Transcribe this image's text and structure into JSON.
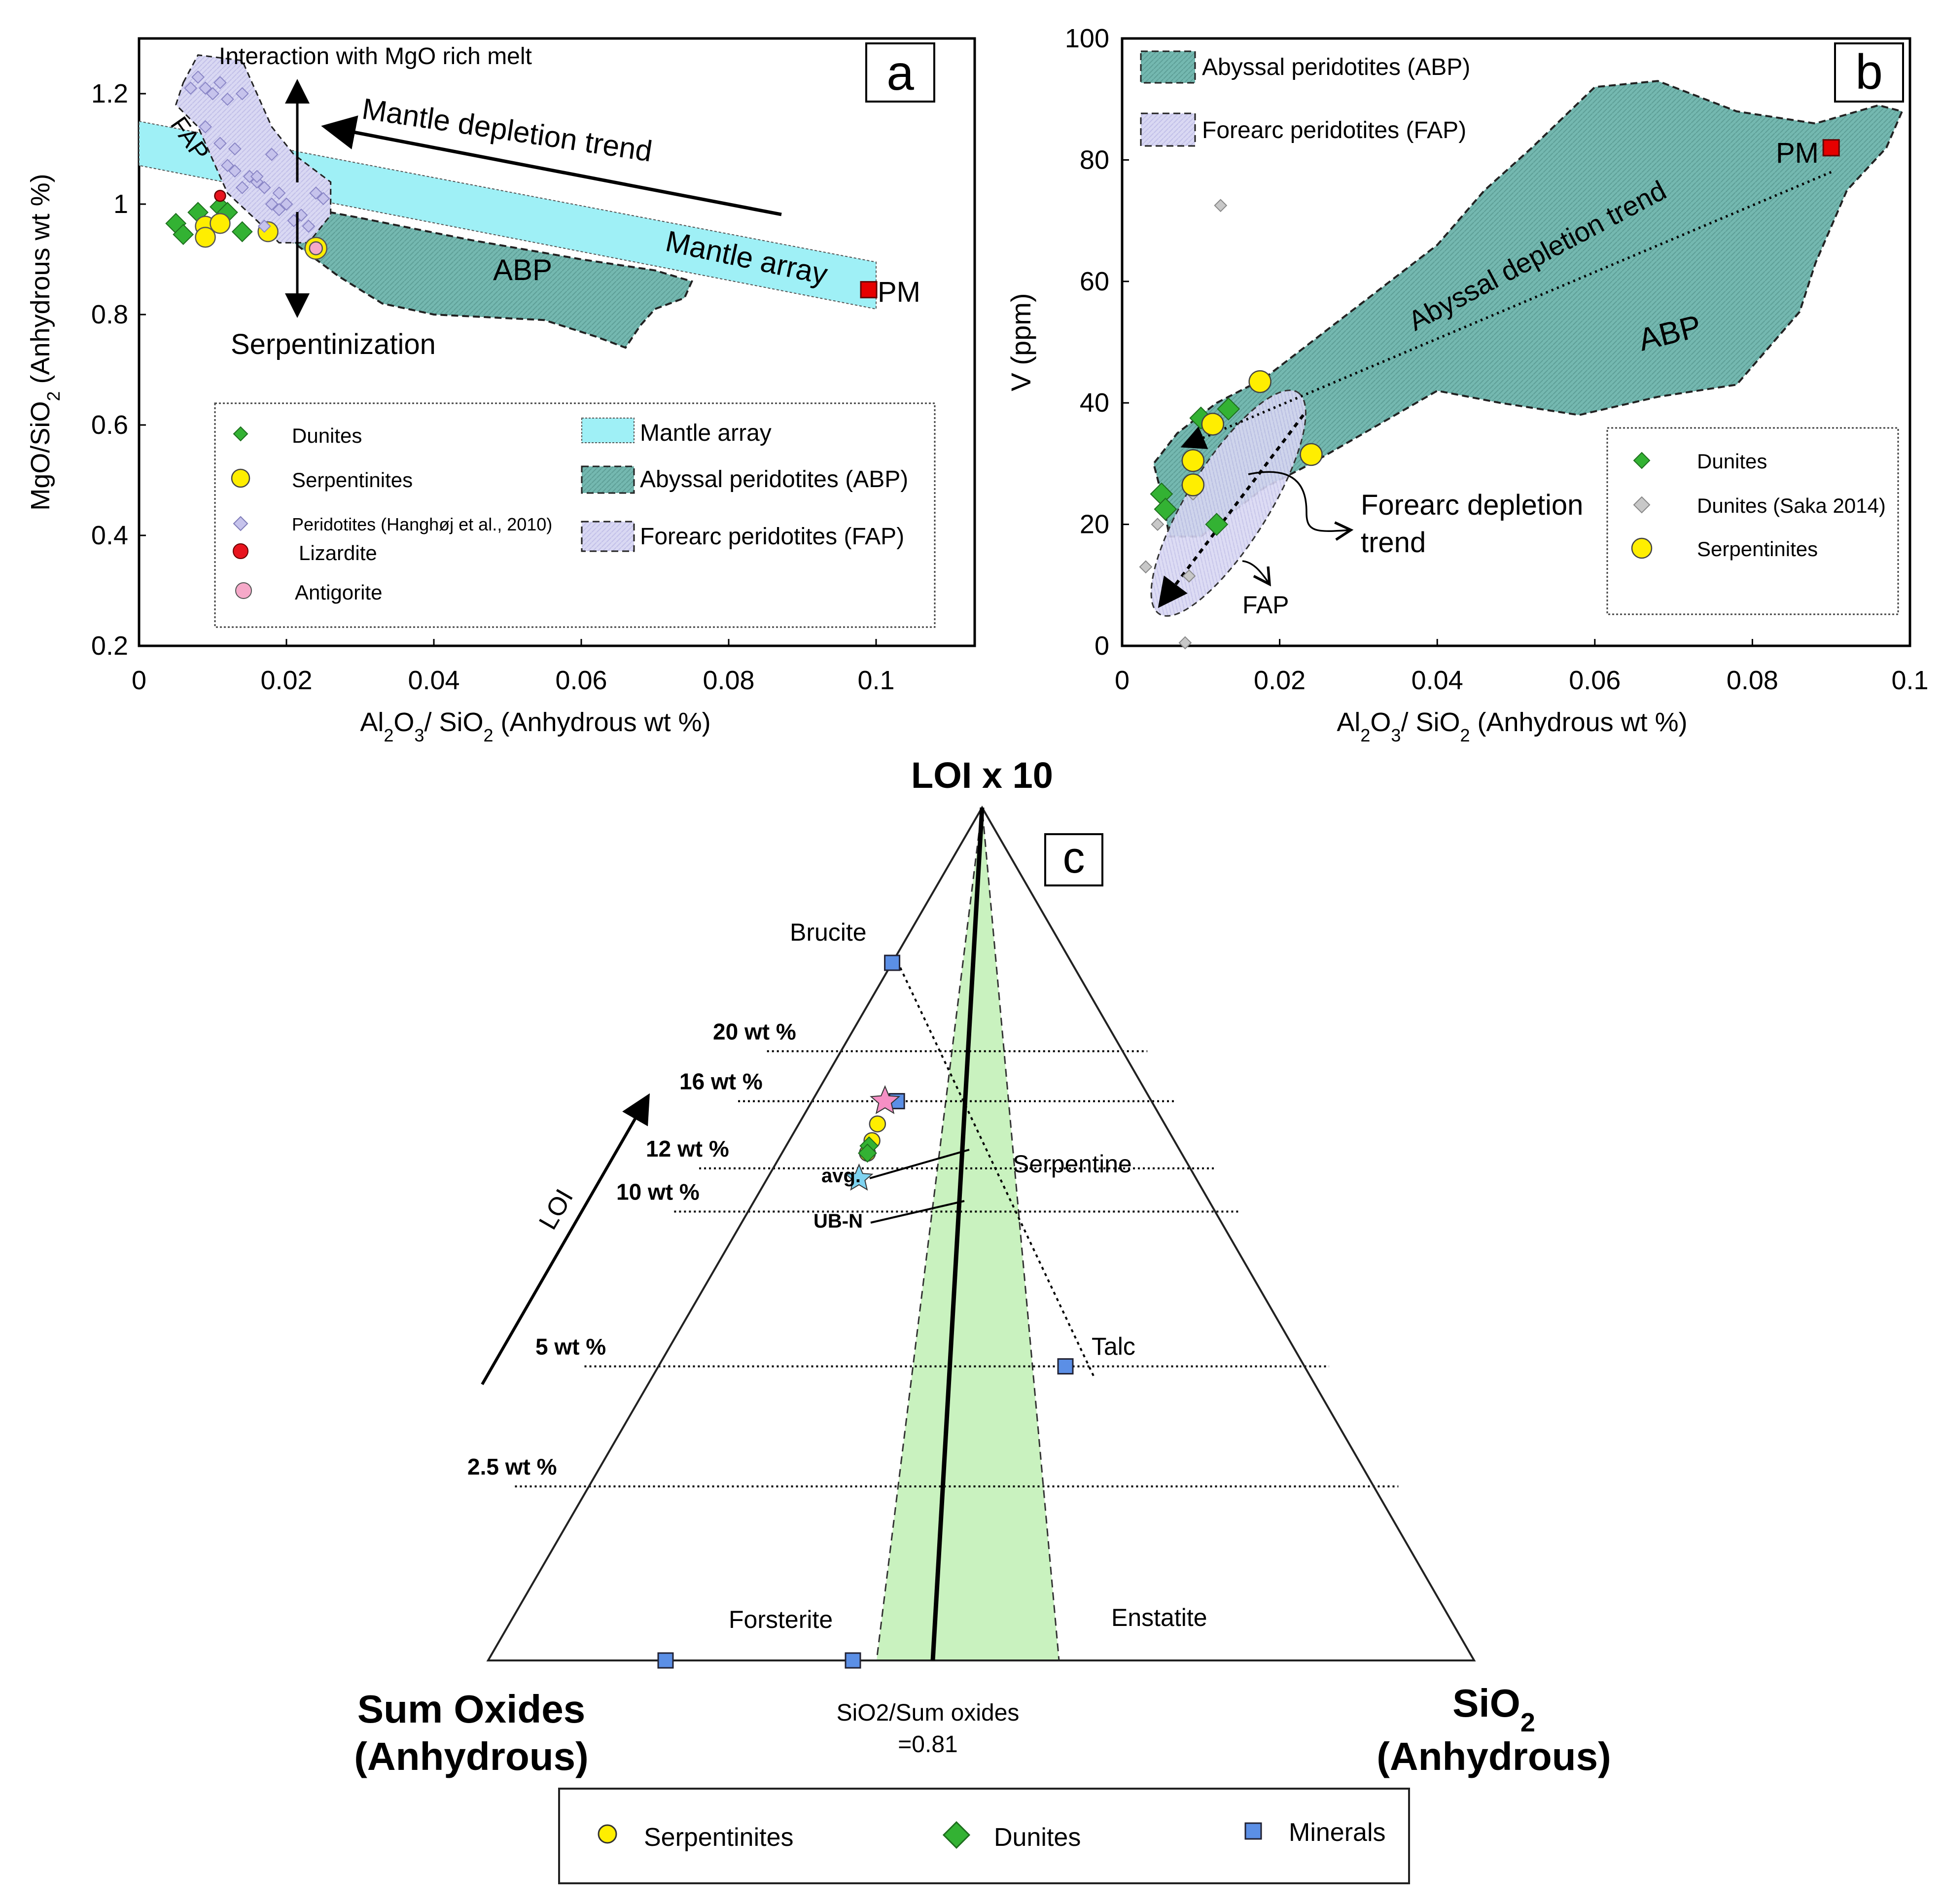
{
  "panel_a": {
    "letter": "a",
    "y_axis_label_main": "MgO/SiO",
    "y_axis_label_sub": "2",
    "y_axis_label_tail": " (Anhydrous wt %)",
    "x_axis_label": {
      "p1": "Al",
      "s1": "2",
      "p2": "O",
      "s2": "3",
      "p3": "/ SiO",
      "s3": "2",
      "p4": " (Anhydrous wt %)"
    },
    "annotations": {
      "interaction": "Interaction with MgO rich melt",
      "mantle_depletion": "Mantle depletion trend",
      "mantle_array": "Mantle array",
      "serpentinization": "Serpentinization",
      "abp": "ABP",
      "fap": "FAP",
      "pm": "PM"
    },
    "legend": {
      "dunites": "Dunites",
      "serpentinites": "Serpentinites",
      "peridotites": "Peridotites (Hanghøj et al., 2010)",
      "lizardite": "Lizardite",
      "antigorite": "Antigorite",
      "mantle_array": "Mantle array",
      "abp": "Abyssal peridotites (ABP)",
      "fap": "Forearc peridotites (FAP)"
    }
  },
  "panel_b": {
    "letter": "b",
    "y_axis_label": "V (ppm)",
    "x_axis_label": {
      "p1": "Al",
      "s1": "2",
      "p2": "O",
      "s2": "3",
      "p3": "/ SiO",
      "s3": "2",
      "p4": " (Anhydrous wt %)"
    },
    "annotations": {
      "abyssal_trend": "Abyssal depletion trend",
      "abp": "ABP",
      "pm": "PM",
      "forearc_trend_1": "Forearc depletion",
      "forearc_trend_2": "trend",
      "fap": "FAP"
    },
    "legend": {
      "abp": "Abyssal peridotites (ABP)",
      "fap": "Forearc peridotites (FAP)",
      "dunites": "Dunites",
      "dunites_saka": "Dunites (Saka 2014)",
      "serpentinites": "Serpentinites"
    }
  },
  "panel_c": {
    "letter": "c",
    "apex_top": "LOI x 10",
    "corner_left_1": "Sum Oxides",
    "corner_left_2": "(Anhydrous)",
    "corner_right_1": "SiO",
    "corner_right_sub": "2",
    "corner_right_2": "(Anhydrous)",
    "ratio_line_1": "SiO2/Sum oxides",
    "ratio_line_2": "=0.81",
    "loi_arrow": "LOI",
    "levels": [
      "20 wt %",
      "16 wt %",
      "12 wt %",
      "10 wt %",
      "5 wt %",
      "2.5 wt %"
    ],
    "minerals": {
      "brucite": "Brucite",
      "serpentine": "Serpentine",
      "talc": "Talc",
      "forsterite": "Forsterite",
      "enstatite": "Enstatite"
    },
    "pointers": {
      "avg": "avg.",
      "ubn": "UB-N"
    },
    "legend": {
      "serpentinites": "Serpentinites",
      "dunites": "Dunites",
      "minerals": "Minerals"
    }
  },
  "colors": {
    "dunite": "#33b233",
    "serpentinite": "#ffee00",
    "peridotite": "#c6c3ec",
    "saka": "#c8c8c8",
    "lizardite": "#e8141e",
    "antigorite": "#f6a9c9",
    "abp_fill": "#74b8b0",
    "fap_fill": "#d9d8f3",
    "mantle_array": "#9ff0f6",
    "green_field": "#c9f2bf",
    "mineral": "#5b8fe6",
    "pm": "#e60000"
  },
  "chart_data": [
    {
      "id": "a",
      "type": "scatter",
      "title": "",
      "xlabel": "Al2O3 / SiO2 (Anhydrous wt %)",
      "ylabel": "MgO/SiO2 (Anhydrous wt %)",
      "xlim": [
        0,
        0.11
      ],
      "ylim": [
        0.2,
        1.3
      ],
      "xticks": [
        0,
        0.02,
        0.04,
        0.06,
        0.08,
        0.1
      ],
      "yticks": [
        0.2,
        0.4,
        0.6,
        0.8,
        1,
        1.2
      ],
      "series": [
        {
          "name": "Dunites",
          "marker": "diamond",
          "color": "#33b233",
          "x": [
            0.005,
            0.006,
            0.008,
            0.011,
            0.014,
            0.012,
            0.009
          ],
          "y": [
            0.965,
            0.945,
            0.985,
            0.995,
            0.95,
            0.985,
            0.96
          ]
        },
        {
          "name": "Serpentinites",
          "marker": "circle",
          "color": "#ffee00",
          "x": [
            0.009,
            0.011,
            0.009,
            0.0175,
            0.024
          ],
          "y": [
            0.96,
            0.965,
            0.94,
            0.95,
            0.92
          ]
        },
        {
          "name": "Peridotites (Hanghøj et al., 2010)",
          "marker": "diamond",
          "color": "#c6c3ec",
          "x": [
            0.008,
            0.009,
            0.011,
            0.01,
            0.012,
            0.014,
            0.007,
            0.013,
            0.018,
            0.017,
            0.015,
            0.016,
            0.019,
            0.02,
            0.022,
            0.025,
            0.024,
            0.021,
            0.013,
            0.011,
            0.016,
            0.018,
            0.023,
            0.014,
            0.009,
            0.017,
            0.019,
            0.012
          ],
          "y": [
            1.23,
            1.21,
            1.22,
            1.2,
            1.19,
            1.2,
            1.21,
            1.1,
            1.09,
            1.03,
            1.05,
            1.04,
            0.99,
            1.0,
            0.98,
            1.01,
            1.02,
            0.97,
            1.06,
            1.11,
            1.05,
            1.0,
            0.96,
            1.03,
            1.14,
            0.96,
            1.02,
            1.07
          ]
        },
        {
          "name": "Lizardite",
          "marker": "circle",
          "color": "#e8141e",
          "x": [
            0.011
          ],
          "y": [
            1.015
          ]
        },
        {
          "name": "Antigorite",
          "marker": "circle",
          "color": "#f6a9c9",
          "x": [
            0.024
          ],
          "y": [
            0.92
          ]
        },
        {
          "name": "PM",
          "marker": "square",
          "color": "#e60000",
          "x": [
            0.099
          ],
          "y": [
            0.845
          ]
        }
      ]
    },
    {
      "id": "b",
      "type": "scatter",
      "title": "",
      "xlabel": "Al2O3 / SiO2 (Anhydrous wt %)",
      "ylabel": "V (ppm)",
      "xlim": [
        0,
        0.1
      ],
      "ylim": [
        0,
        100
      ],
      "xticks": [
        0,
        0.02,
        0.04,
        0.06,
        0.08,
        0.1
      ],
      "yticks": [
        0,
        20,
        40,
        60,
        80,
        100
      ],
      "series": [
        {
          "name": "Dunites",
          "marker": "diamond",
          "color": "#33b233",
          "x": [
            0.005,
            0.0055,
            0.01,
            0.0135,
            0.012
          ],
          "y": [
            25,
            22.5,
            37.5,
            39,
            20
          ]
        },
        {
          "name": "Dunites (Saka 2014)",
          "marker": "diamond",
          "color": "#c8c8c8",
          "x": [
            0.0125,
            0.0045,
            0.003,
            0.0085,
            0.008,
            0.009
          ],
          "y": [
            72.5,
            20,
            13,
            11.5,
            0.5,
            25
          ]
        },
        {
          "name": "Serpentinites",
          "marker": "circle",
          "color": "#ffee00",
          "x": [
            0.0175,
            0.0115,
            0.009,
            0.009,
            0.024
          ],
          "y": [
            43.5,
            36.5,
            30.5,
            26.5,
            31.5
          ]
        },
        {
          "name": "PM",
          "marker": "square",
          "color": "#e60000",
          "x": [
            0.09
          ],
          "y": [
            82
          ]
        }
      ]
    },
    {
      "id": "c",
      "type": "ternary",
      "title": "",
      "apices": [
        "LOI x 10",
        "Sum Oxides (Anhydrous)",
        "SiO2 (Anhydrous)"
      ],
      "loi_levels_wt_percent": [
        20,
        16,
        12,
        10,
        5,
        2.5
      ],
      "sio2_over_sum_oxides": 0.81,
      "series": [
        {
          "name": "Minerals",
          "marker": "square",
          "color": "#5b8fe6",
          "labels": [
            "Brucite",
            "Serpentine",
            "Talc",
            "Forsterite",
            "Enstatite"
          ],
          "loi_wt_percent": [
            31,
            16,
            5,
            0,
            0
          ],
          "sio2_fraction_of_anhydrous": [
            0,
            0.25,
            0.63,
            0.18,
            0.37
          ]
        },
        {
          "name": "Serpentinites",
          "marker": "circle",
          "color": "#ffee00",
          "loi_wt_percent": [
            14.5,
            13.5,
            12.8
          ],
          "sio2_fraction_of_anhydrous": [
            0.215,
            0.215,
            0.214
          ]
        },
        {
          "name": "Dunites",
          "marker": "diamond",
          "color": "#33b233",
          "loi_wt_percent": [
            13.2,
            12.8
          ],
          "sio2_fraction_of_anhydrous": [
            0.212,
            0.214
          ]
        },
        {
          "name": "avg.",
          "marker": "star",
          "color": "#f58fc4",
          "loi_wt_percent": [
            16
          ],
          "sio2_fraction_of_anhydrous": [
            0.215
          ]
        },
        {
          "name": "UB-N",
          "marker": "star",
          "color": "#7fd3f0",
          "loi_wt_percent": [
            11.5
          ],
          "sio2_fraction_of_anhydrous": [
            0.214
          ]
        }
      ]
    }
  ]
}
